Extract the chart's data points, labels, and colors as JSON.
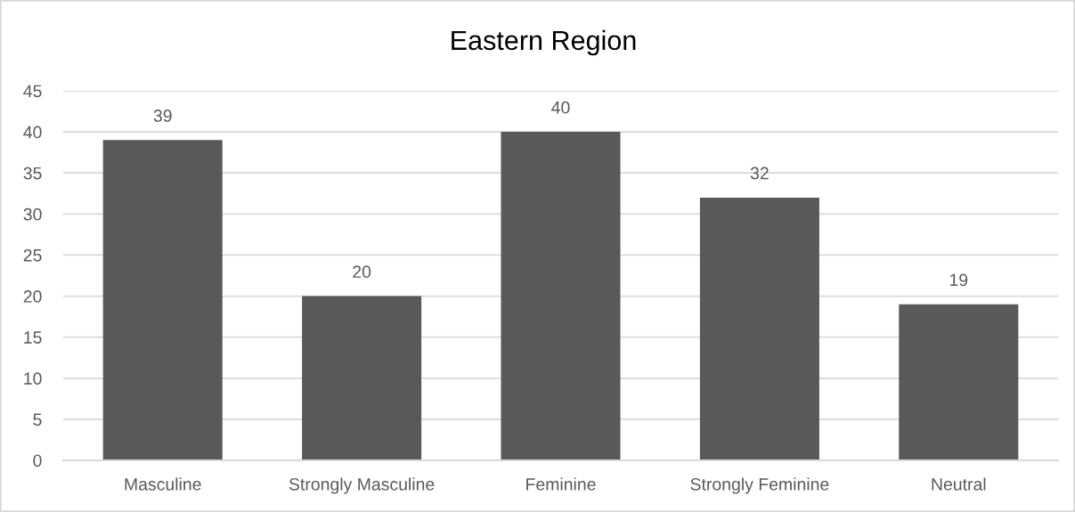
{
  "chart_data": {
    "type": "bar",
    "title": "Eastern Region",
    "categories": [
      "Masculine",
      "Strongly Masculine",
      "Feminine",
      "Strongly Feminine",
      "Neutral"
    ],
    "values": [
      39,
      20,
      40,
      32,
      19
    ],
    "color": "#595959",
    "ylim": [
      0,
      45
    ],
    "yticks": [
      0,
      5,
      10,
      15,
      20,
      25,
      30,
      35,
      40,
      45
    ],
    "grid": "y",
    "data_labels": true
  }
}
